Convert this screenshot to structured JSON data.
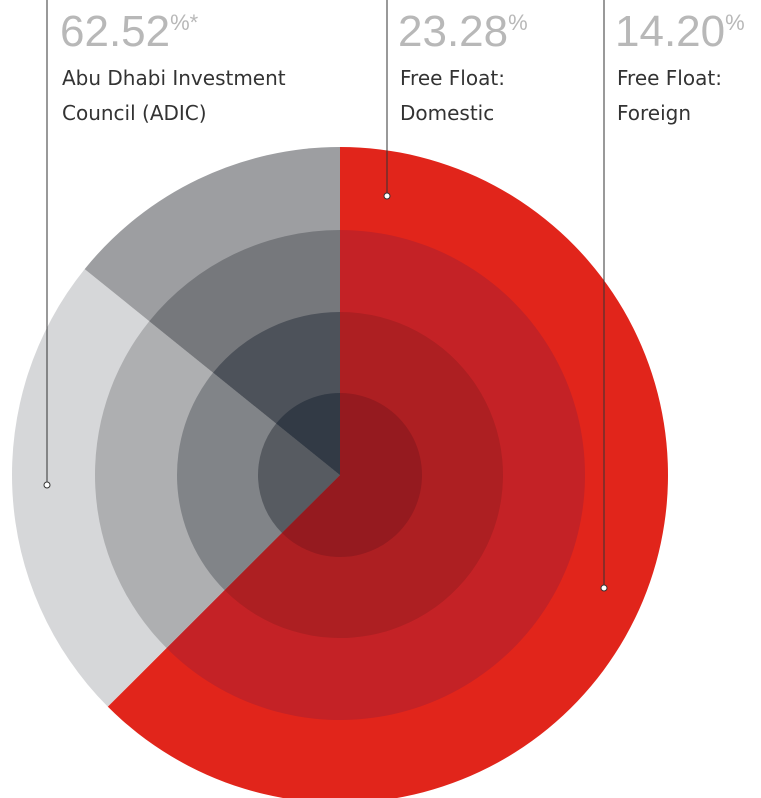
{
  "chart_data": {
    "type": "pie",
    "categories": [
      [
        "Abu Dhabi Investment",
        "Council (ADIC)"
      ],
      [
        "Free Float:",
        "Domestic"
      ],
      [
        "Free Float:",
        "Foreign"
      ]
    ],
    "values": [
      62.52,
      23.28,
      14.2
    ],
    "value_labels": [
      "62.52",
      "23.28",
      "14.20"
    ],
    "label_suffixes": [
      "%*",
      "%",
      "%"
    ],
    "colors": [
      [
        "#e1251b",
        "#c42226",
        "#ad1f22",
        "#951a1f"
      ],
      [
        "#d6d7d9",
        "#aeafb1",
        "#818488",
        "#575b61"
      ],
      [
        "#9d9ea1",
        "#76787c",
        "#4d525a",
        "#323a45"
      ]
    ]
  }
}
